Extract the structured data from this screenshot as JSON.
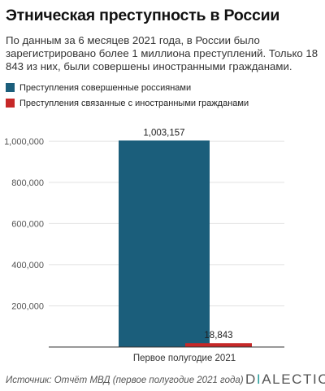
{
  "title": "Этническая преступность в России",
  "subtitle": "По данным за 6 месяцев 2021 года, в России было зарегистрировано более 1 миллиона преступлений. Только 18 843 из них, были совершены иностранными гражданами.",
  "footer": {
    "source": "Источник: Отчёт МВД (первое полугодие 2021 года)",
    "logo_first": "D",
    "logo_accent": "I",
    "logo_rest": "ALECTIC",
    "logo_accent_color": "#2a9d9a"
  },
  "chart_data": {
    "type": "bar",
    "categories": [
      "Первое полугодие 2021"
    ],
    "series": [
      {
        "name": "Преступления совершенные россиянами",
        "color": "#1b5e7b",
        "values": [
          1003157
        ],
        "label": "1,003,157"
      },
      {
        "name": "Преступления связанные с иностранными гражданами",
        "color": "#c62828",
        "values": [
          18843
        ],
        "label": "18,843"
      }
    ],
    "yticks": [
      {
        "value": 200000,
        "label": "200,000"
      },
      {
        "value": 400000,
        "label": "400,000"
      },
      {
        "value": 600000,
        "label": "600,000"
      },
      {
        "value": 800000,
        "label": "800,000"
      },
      {
        "value": 1000000,
        "label": "1,000,000"
      }
    ],
    "ylim": [
      0,
      1100000
    ],
    "grid": true,
    "legend": "top-left"
  }
}
